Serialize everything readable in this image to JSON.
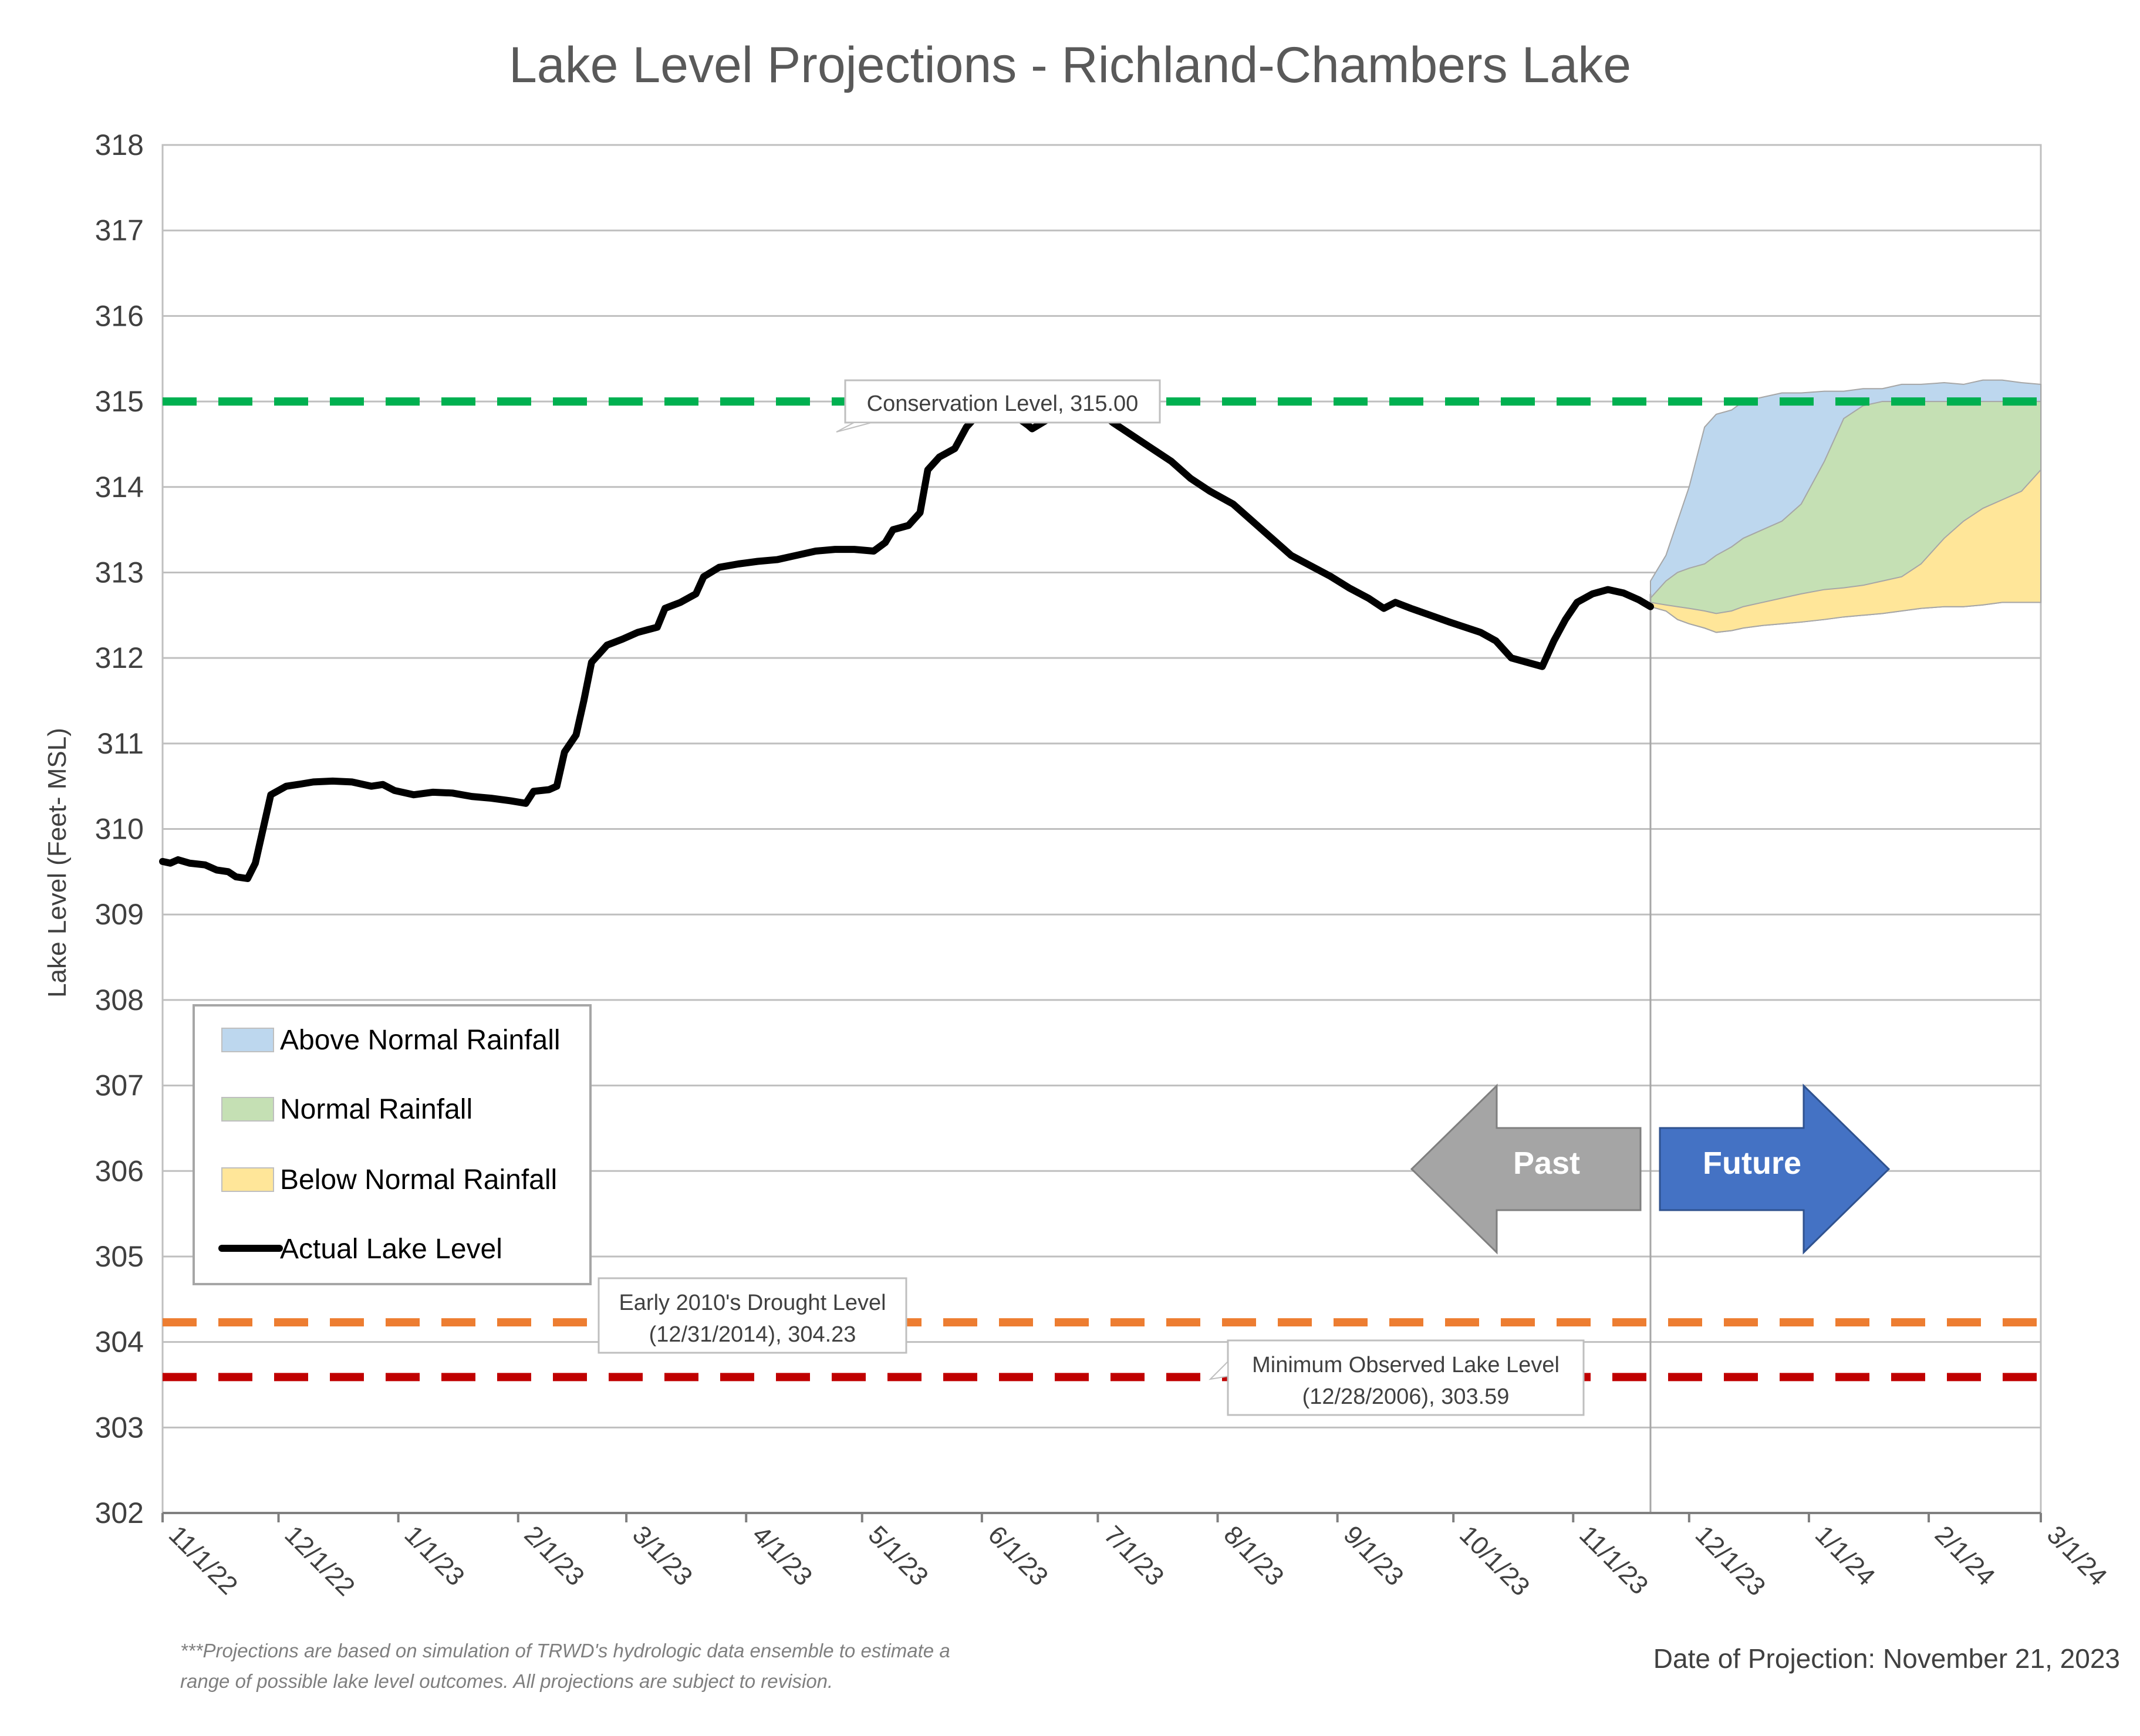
{
  "chart_data": {
    "type": "area",
    "title": "Lake Level Projections - Richland-Chambers Lake",
    "ylabel": "Lake Level (Feet- MSL)",
    "xlabel": "",
    "ylim": [
      302,
      318
    ],
    "xlim": [
      "2022-11-01",
      "2024-03-01"
    ],
    "yticks": [
      302,
      303,
      304,
      305,
      306,
      307,
      308,
      309,
      310,
      311,
      312,
      313,
      314,
      315,
      316,
      317,
      318
    ],
    "xtick_labels": [
      "11/1/22",
      "12/1/22",
      "1/1/23",
      "2/1/23",
      "3/1/23",
      "4/1/23",
      "5/1/23",
      "6/1/23",
      "7/1/23",
      "8/1/23",
      "9/1/23",
      "10/1/23",
      "11/1/23",
      "12/1/23",
      "1/1/24",
      "2/1/24",
      "3/1/24"
    ],
    "xtick_dates": [
      "2022-11-01",
      "2022-12-01",
      "2023-01-01",
      "2023-02-01",
      "2023-03-01",
      "2023-04-01",
      "2023-05-01",
      "2023-06-01",
      "2023-07-01",
      "2023-08-01",
      "2023-09-01",
      "2023-10-01",
      "2023-11-01",
      "2023-12-01",
      "2024-01-01",
      "2024-02-01",
      "2024-03-01"
    ],
    "grid": true,
    "legend_position": "lower-left",
    "legend": {
      "above": "Above Normal Rainfall",
      "normal": "Normal Rainfall",
      "below": "Below Normal Rainfall",
      "actual": "Actual Lake Level"
    },
    "colors": {
      "above": "#bdd7ee",
      "normal": "#c5e0b4",
      "below": "#ffe699",
      "actual": "#000000",
      "conservation": "#00b050",
      "drought": "#ed7d31",
      "minimum": "#c00000",
      "past_arrow": "#a5a5a5",
      "future_arrow": "#4472c4"
    },
    "reference_lines": [
      {
        "key": "conservation",
        "value": 315.0,
        "label": "Conservation Level, 315.00"
      },
      {
        "key": "drought",
        "value": 304.23,
        "label_line1": "Early 2010's Drought Level",
        "label_line2": "(12/31/2014), 304.23"
      },
      {
        "key": "minimum",
        "value": 303.59,
        "label_line1": "Minimum Observed Lake Level",
        "label_line2": "(12/28/2006), 303.59"
      }
    ],
    "projection_date": "2023-11-21",
    "actual_series": {
      "name": "Actual Lake Level",
      "points": [
        [
          "2022-11-01",
          309.62
        ],
        [
          "2022-11-03",
          309.6
        ],
        [
          "2022-11-05",
          309.64
        ],
        [
          "2022-11-08",
          309.6
        ],
        [
          "2022-11-12",
          309.58
        ],
        [
          "2022-11-15",
          309.52
        ],
        [
          "2022-11-18",
          309.5
        ],
        [
          "2022-11-20",
          309.44
        ],
        [
          "2022-11-23",
          309.42
        ],
        [
          "2022-11-25",
          309.6
        ],
        [
          "2022-11-27",
          310.0
        ],
        [
          "2022-11-29",
          310.4
        ],
        [
          "2022-12-03",
          310.5
        ],
        [
          "2022-12-06",
          310.52
        ],
        [
          "2022-12-10",
          310.55
        ],
        [
          "2022-12-15",
          310.56
        ],
        [
          "2022-12-20",
          310.55
        ],
        [
          "2022-12-25",
          310.5
        ],
        [
          "2022-12-28",
          310.52
        ],
        [
          "2022-12-31",
          310.45
        ],
        [
          "2023-01-05",
          310.4
        ],
        [
          "2023-01-10",
          310.43
        ],
        [
          "2023-01-15",
          310.42
        ],
        [
          "2023-01-20",
          310.38
        ],
        [
          "2023-01-25",
          310.36
        ],
        [
          "2023-01-30",
          310.33
        ],
        [
          "2023-02-03",
          310.3
        ],
        [
          "2023-02-05",
          310.44
        ],
        [
          "2023-02-09",
          310.46
        ],
        [
          "2023-02-11",
          310.5
        ],
        [
          "2023-02-13",
          310.9
        ],
        [
          "2023-02-16",
          311.1
        ],
        [
          "2023-02-18",
          311.5
        ],
        [
          "2023-02-20",
          311.95
        ],
        [
          "2023-02-24",
          312.15
        ],
        [
          "2023-02-28",
          312.22
        ],
        [
          "2023-03-04",
          312.3
        ],
        [
          "2023-03-09",
          312.36
        ],
        [
          "2023-03-11",
          312.58
        ],
        [
          "2023-03-15",
          312.65
        ],
        [
          "2023-03-19",
          312.75
        ],
        [
          "2023-03-21",
          312.95
        ],
        [
          "2023-03-25",
          313.06
        ],
        [
          "2023-03-30",
          313.1
        ],
        [
          "2023-04-04",
          313.13
        ],
        [
          "2023-04-09",
          313.15
        ],
        [
          "2023-04-14",
          313.2
        ],
        [
          "2023-04-19",
          313.25
        ],
        [
          "2023-04-24",
          313.27
        ],
        [
          "2023-04-29",
          313.27
        ],
        [
          "2023-05-04",
          313.25
        ],
        [
          "2023-05-07",
          313.35
        ],
        [
          "2023-05-09",
          313.5
        ],
        [
          "2023-05-13",
          313.55
        ],
        [
          "2023-05-16",
          313.7
        ],
        [
          "2023-05-18",
          314.2
        ],
        [
          "2023-05-21",
          314.35
        ],
        [
          "2023-05-25",
          314.45
        ],
        [
          "2023-05-28",
          314.7
        ],
        [
          "2023-06-01",
          314.9
        ],
        [
          "2023-06-05",
          315.0
        ],
        [
          "2023-06-09",
          314.85
        ],
        [
          "2023-06-13",
          314.72
        ],
        [
          "2023-06-14",
          314.68
        ],
        [
          "2023-06-22",
          314.9
        ],
        [
          "2023-07-01",
          314.9
        ],
        [
          "2023-07-05",
          314.75
        ],
        [
          "2023-07-10",
          314.6
        ],
        [
          "2023-07-15",
          314.45
        ],
        [
          "2023-07-20",
          314.3
        ],
        [
          "2023-07-25",
          314.1
        ],
        [
          "2023-07-30",
          313.95
        ],
        [
          "2023-08-05",
          313.8
        ],
        [
          "2023-08-10",
          313.6
        ],
        [
          "2023-08-15",
          313.4
        ],
        [
          "2023-08-20",
          313.2
        ],
        [
          "2023-08-25",
          313.08
        ],
        [
          "2023-08-30",
          312.96
        ],
        [
          "2023-09-04",
          312.82
        ],
        [
          "2023-09-09",
          312.7
        ],
        [
          "2023-09-13",
          312.58
        ],
        [
          "2023-09-16",
          312.65
        ],
        [
          "2023-09-20",
          312.58
        ],
        [
          "2023-09-25",
          312.5
        ],
        [
          "2023-09-30",
          312.42
        ],
        [
          "2023-10-04",
          312.36
        ],
        [
          "2023-10-08",
          312.3
        ],
        [
          "2023-10-12",
          312.2
        ],
        [
          "2023-10-16",
          312.0
        ],
        [
          "2023-10-20",
          311.95
        ],
        [
          "2023-10-24",
          311.9
        ],
        [
          "2023-10-27",
          312.2
        ],
        [
          "2023-10-30",
          312.45
        ],
        [
          "2023-11-02",
          312.65
        ],
        [
          "2023-11-06",
          312.75
        ],
        [
          "2023-11-10",
          312.8
        ],
        [
          "2023-11-14",
          312.76
        ],
        [
          "2023-11-18",
          312.68
        ],
        [
          "2023-11-21",
          312.6
        ]
      ]
    },
    "projection_bands": {
      "dates": [
        "2023-11-21",
        "2023-11-25",
        "2023-11-28",
        "2023-12-01",
        "2023-12-05",
        "2023-12-08",
        "2023-12-12",
        "2023-12-15",
        "2023-12-20",
        "2023-12-25",
        "2023-12-30",
        "2024-01-05",
        "2024-01-10",
        "2024-01-15",
        "2024-01-20",
        "2024-01-25",
        "2024-01-30",
        "2024-02-05",
        "2024-02-10",
        "2024-02-15",
        "2024-02-20",
        "2024-02-25",
        "2024-03-01"
      ],
      "above_upper": [
        312.9,
        313.2,
        313.6,
        314.0,
        314.7,
        314.85,
        314.9,
        315.0,
        315.05,
        315.1,
        315.1,
        315.12,
        315.12,
        315.15,
        315.15,
        315.2,
        315.2,
        315.22,
        315.2,
        315.25,
        315.25,
        315.22,
        315.2
      ],
      "normal_upper": [
        312.7,
        312.9,
        313.0,
        313.05,
        313.1,
        313.2,
        313.3,
        313.4,
        313.5,
        313.6,
        313.8,
        314.3,
        314.8,
        314.95,
        315.0,
        315.0,
        315.0,
        315.0,
        315.0,
        315.0,
        315.0,
        315.0,
        315.0
      ],
      "below_upper": [
        312.65,
        312.62,
        312.6,
        312.58,
        312.55,
        312.52,
        312.55,
        312.6,
        312.65,
        312.7,
        312.75,
        312.8,
        312.82,
        312.85,
        312.9,
        312.95,
        313.1,
        313.4,
        313.6,
        313.75,
        313.85,
        313.95,
        314.2
      ],
      "lower": [
        312.6,
        312.55,
        312.45,
        312.4,
        312.35,
        312.3,
        312.32,
        312.35,
        312.38,
        312.4,
        312.42,
        312.45,
        312.48,
        312.5,
        312.52,
        312.55,
        312.58,
        312.6,
        312.6,
        312.62,
        312.65,
        312.65,
        312.65
      ]
    },
    "arrows": {
      "past": "Past",
      "future": "Future"
    }
  },
  "footnote": {
    "line1": "***Projections are based on simulation of TRWD's hydrologic data ensemble to estimate a",
    "line2": "range of possible lake level outcomes.  All projections are subject to revision."
  },
  "projection_date_text": "Date of Projection: November 21, 2023"
}
